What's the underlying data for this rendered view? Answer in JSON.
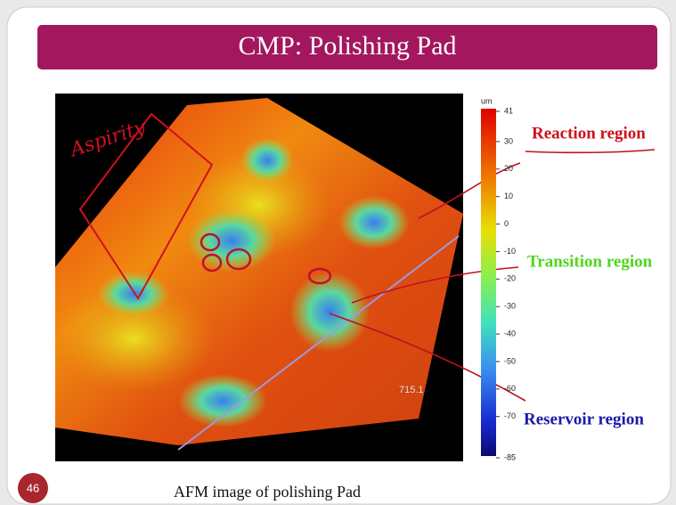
{
  "slide": {
    "title": "CMP:  Polishing Pad",
    "number": "46",
    "caption": "AFM image of polishing Pad",
    "image": {
      "annotation": "Aspirity",
      "scale_label": "715.1"
    },
    "colorbar": {
      "unit": "um",
      "ticks": [
        41,
        30,
        20,
        10,
        0,
        -10,
        -20,
        -30,
        -40,
        -50,
        -60,
        -70,
        -85
      ]
    },
    "regions": [
      {
        "label": "Reaction region",
        "color": "#d0101a"
      },
      {
        "label": "Transition region",
        "color": "#4fd61e"
      },
      {
        "label": "Reservoir region",
        "color": "#1a1aa8"
      }
    ]
  }
}
